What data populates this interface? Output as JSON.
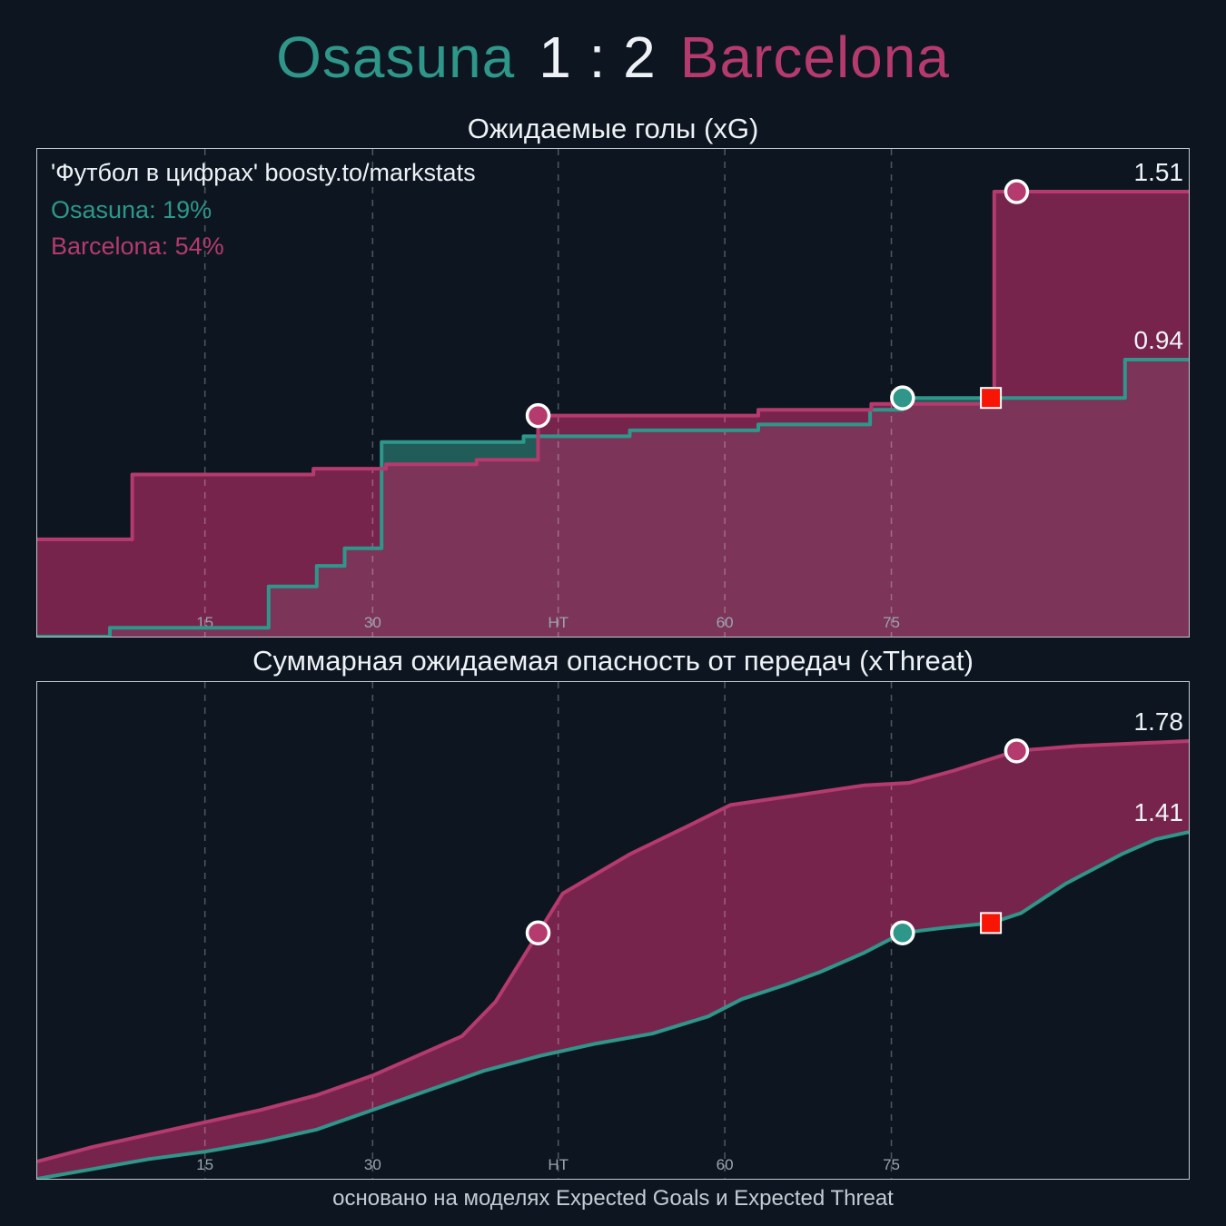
{
  "header": {
    "home_team": "Osasuna",
    "score": "1 : 2",
    "away_team": "Barcelona"
  },
  "watermark": "'Футбол в цифрах' boosty.to/markstats",
  "probabilities": {
    "home": "Osasuna: 19%",
    "away": "Barcelona: 54%"
  },
  "footer": "основано на моделях Expected Goals и Expected Threat",
  "colors": {
    "home": "#2f968a",
    "away": "#b53a6d",
    "home_fill": "rgba(38,104,100,0.85)",
    "away_fill": "rgba(150,41,90,0.78)",
    "between_fill": "rgba(150,41,90,0.78)",
    "grid": "rgba(255,255,255,0.28)",
    "tick_text": "#9aa5b0",
    "label_text": "#eef2f6",
    "red_card": "#f71505",
    "background": "#0d1620"
  },
  "chart_data": [
    {
      "type": "area",
      "title": "Ожидаемые голы (xG)",
      "interpolation": "step",
      "fill": "under",
      "x_max": 103,
      "y_max": 1.655,
      "ylim": [
        0,
        1.66
      ],
      "x_ticks": [
        {
          "label": "15",
          "t": 15
        },
        {
          "label": "30",
          "t": 30
        },
        {
          "label": "HT",
          "t": 46.6
        },
        {
          "label": "60",
          "t": 61.5
        },
        {
          "label": "75",
          "t": 76.4
        }
      ],
      "series": [
        {
          "name": "Osasuna",
          "color_key": "home",
          "final_value": 0.94,
          "end_label": "0.94",
          "points": [
            [
              0,
              0
            ],
            [
              6.5,
              0.03
            ],
            [
              20.7,
              0.17
            ],
            [
              25,
              0.24
            ],
            [
              27.5,
              0.3
            ],
            [
              30.8,
              0.66
            ],
            [
              43.5,
              0.68
            ],
            [
              53,
              0.7
            ],
            [
              64.5,
              0.72
            ],
            [
              74.5,
              0.77
            ],
            [
              77.4,
              0.81
            ],
            [
              97.3,
              0.94
            ]
          ]
        },
        {
          "name": "Barcelona",
          "color_key": "away",
          "final_value": 1.51,
          "end_label": "1.51",
          "points": [
            [
              0,
              0.33
            ],
            [
              8.5,
              0.55
            ],
            [
              24.7,
              0.57
            ],
            [
              31.2,
              0.585
            ],
            [
              39.3,
              0.6
            ],
            [
              44.8,
              0.75
            ],
            [
              64.5,
              0.77
            ],
            [
              74.6,
              0.79
            ],
            [
              85.6,
              1.51
            ]
          ]
        }
      ],
      "markers": [
        {
          "type": "goal",
          "team": "away",
          "t": 44.8,
          "value": 0.75
        },
        {
          "type": "goal",
          "team": "home",
          "t": 77.4,
          "value": 0.81
        },
        {
          "type": "red_card",
          "t": 85.3,
          "value": 0.81
        },
        {
          "type": "goal",
          "team": "away",
          "t": 87.6,
          "value": 1.51
        }
      ]
    },
    {
      "type": "area",
      "title": "Суммарная ожидаемая опасность от передач (xThreat)",
      "interpolation": "linear",
      "fill": "between",
      "x_max": 103,
      "y_max": 2.02,
      "ylim": [
        0,
        2.02
      ],
      "x_ticks": [
        {
          "label": "15",
          "t": 15
        },
        {
          "label": "30",
          "t": 30
        },
        {
          "label": "HT",
          "t": 46.6
        },
        {
          "label": "60",
          "t": 61.5
        },
        {
          "label": "75",
          "t": 76.4
        }
      ],
      "series": [
        {
          "name": "Osasuna",
          "color_key": "home",
          "final_value": 1.41,
          "end_label": "1.41",
          "points": [
            [
              0,
              0
            ],
            [
              5,
              0.04
            ],
            [
              10,
              0.08
            ],
            [
              15,
              0.11
            ],
            [
              20,
              0.15
            ],
            [
              25,
              0.2
            ],
            [
              30,
              0.28
            ],
            [
              35,
              0.36
            ],
            [
              40,
              0.44
            ],
            [
              45,
              0.5
            ],
            [
              50,
              0.55
            ],
            [
              55,
              0.59
            ],
            [
              60,
              0.66
            ],
            [
              63,
              0.73
            ],
            [
              67,
              0.79
            ],
            [
              70,
              0.84
            ],
            [
              74,
              0.92
            ],
            [
              77.4,
              1.0
            ],
            [
              81,
              1.02
            ],
            [
              85.3,
              1.04
            ],
            [
              88,
              1.08
            ],
            [
              92,
              1.2
            ],
            [
              97,
              1.32
            ],
            [
              100,
              1.38
            ],
            [
              103,
              1.41
            ]
          ]
        },
        {
          "name": "Barcelona",
          "color_key": "away",
          "final_value": 1.78,
          "end_label": "1.78",
          "points": [
            [
              0,
              0.07
            ],
            [
              5,
              0.13
            ],
            [
              10,
              0.18
            ],
            [
              15,
              0.23
            ],
            [
              20,
              0.28
            ],
            [
              25,
              0.34
            ],
            [
              30,
              0.42
            ],
            [
              34,
              0.5
            ],
            [
              38,
              0.58
            ],
            [
              41,
              0.72
            ],
            [
              47,
              1.16
            ],
            [
              53,
              1.32
            ],
            [
              58,
              1.43
            ],
            [
              62,
              1.52
            ],
            [
              68,
              1.56
            ],
            [
              74,
              1.6
            ],
            [
              78,
              1.61
            ],
            [
              82,
              1.66
            ],
            [
              87.6,
              1.74
            ],
            [
              93,
              1.76
            ],
            [
              103,
              1.78
            ]
          ]
        }
      ],
      "markers": [
        {
          "type": "goal",
          "team": "away",
          "t": 44.8,
          "value": 1.0
        },
        {
          "type": "goal",
          "team": "home",
          "t": 77.4,
          "value": 1.0
        },
        {
          "type": "red_card",
          "t": 85.3,
          "value": 1.04
        },
        {
          "type": "goal",
          "team": "away",
          "t": 87.6,
          "value": 1.74
        }
      ]
    }
  ]
}
